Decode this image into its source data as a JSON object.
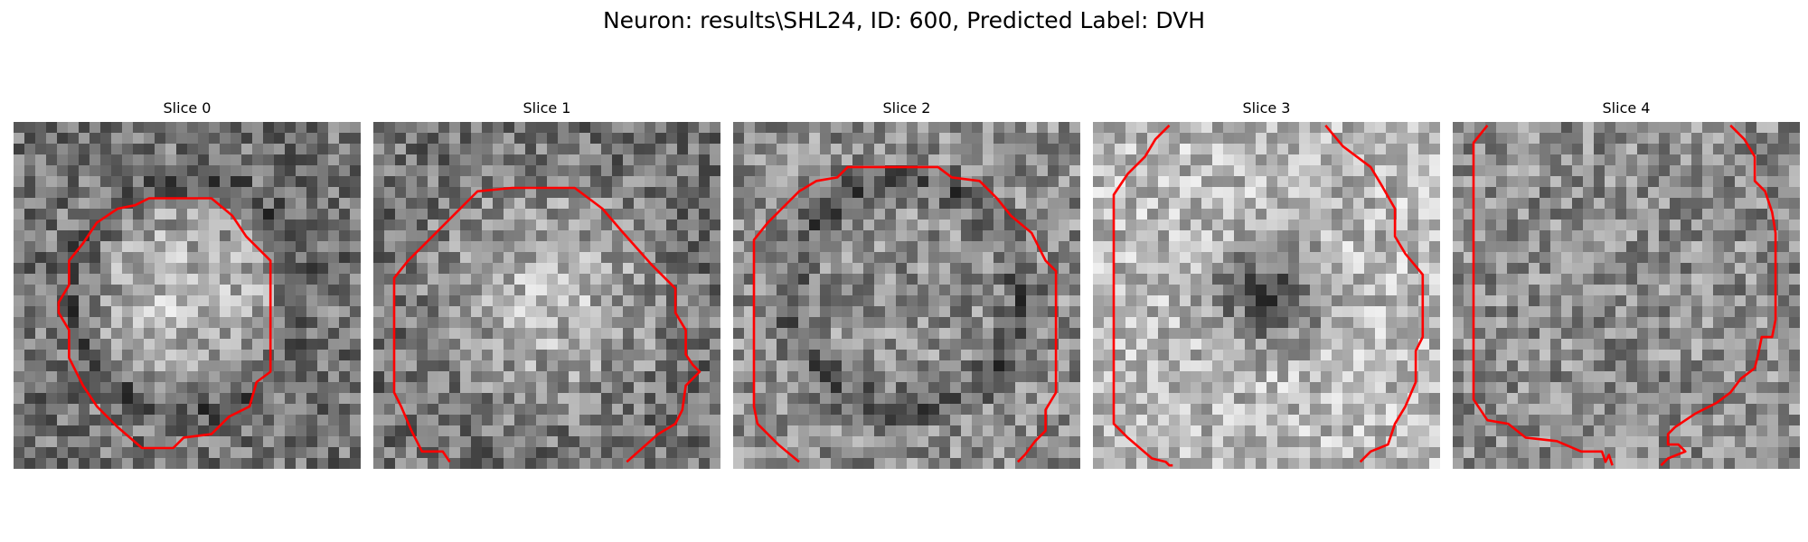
{
  "figure": {
    "title": "Neuron: results\\SHL24, ID: 600, Predicted Label: DVH"
  },
  "panels": [
    {
      "title": "Slice 0",
      "seed": 11,
      "center_brightness": "bright",
      "ring": "dark",
      "contour": [
        [
          0.39,
          0.22
        ],
        [
          0.57,
          0.22
        ],
        [
          0.63,
          0.27
        ],
        [
          0.67,
          0.33
        ],
        [
          0.74,
          0.4
        ],
        [
          0.74,
          0.55
        ],
        [
          0.74,
          0.72
        ],
        [
          0.7,
          0.75
        ],
        [
          0.68,
          0.82
        ],
        [
          0.62,
          0.85
        ],
        [
          0.57,
          0.9
        ],
        [
          0.49,
          0.91
        ],
        [
          0.46,
          0.94
        ],
        [
          0.37,
          0.94
        ],
        [
          0.3,
          0.88
        ],
        [
          0.24,
          0.82
        ],
        [
          0.2,
          0.76
        ],
        [
          0.16,
          0.68
        ],
        [
          0.16,
          0.6
        ],
        [
          0.13,
          0.55
        ],
        [
          0.13,
          0.52
        ],
        [
          0.16,
          0.47
        ],
        [
          0.16,
          0.4
        ],
        [
          0.2,
          0.35
        ],
        [
          0.24,
          0.29
        ],
        [
          0.3,
          0.25
        ],
        [
          0.35,
          0.24
        ],
        [
          0.39,
          0.22
        ]
      ],
      "closed": true
    },
    {
      "title": "Slice 1",
      "seed": 23,
      "center_brightness": "bright",
      "ring": "none",
      "contour": [
        [
          0.22,
          0.98
        ],
        [
          0.2,
          0.95
        ],
        [
          0.14,
          0.95
        ],
        [
          0.11,
          0.89
        ],
        [
          0.08,
          0.82
        ],
        [
          0.06,
          0.78
        ],
        [
          0.06,
          0.45
        ],
        [
          0.1,
          0.4
        ],
        [
          0.18,
          0.32
        ],
        [
          0.28,
          0.22
        ],
        [
          0.3,
          0.2
        ],
        [
          0.4,
          0.19
        ],
        [
          0.58,
          0.19
        ],
        [
          0.62,
          0.22
        ],
        [
          0.66,
          0.25
        ],
        [
          0.72,
          0.32
        ],
        [
          0.8,
          0.41
        ],
        [
          0.87,
          0.48
        ],
        [
          0.87,
          0.55
        ],
        [
          0.9,
          0.6
        ],
        [
          0.9,
          0.67
        ],
        [
          0.92,
          0.7
        ],
        [
          0.94,
          0.72
        ],
        [
          0.9,
          0.76
        ],
        [
          0.89,
          0.83
        ],
        [
          0.87,
          0.87
        ],
        [
          0.82,
          0.9
        ],
        [
          0.73,
          0.98
        ]
      ],
      "closed": false
    },
    {
      "title": "Slice 2",
      "seed": 37,
      "center_brightness": "mixed",
      "ring": "dark",
      "contour": [
        [
          0.19,
          0.98
        ],
        [
          0.13,
          0.93
        ],
        [
          0.07,
          0.87
        ],
        [
          0.06,
          0.82
        ],
        [
          0.06,
          0.34
        ],
        [
          0.1,
          0.29
        ],
        [
          0.14,
          0.25
        ],
        [
          0.19,
          0.2
        ],
        [
          0.24,
          0.17
        ],
        [
          0.3,
          0.16
        ],
        [
          0.33,
          0.13
        ],
        [
          0.59,
          0.13
        ],
        [
          0.63,
          0.16
        ],
        [
          0.71,
          0.17
        ],
        [
          0.76,
          0.22
        ],
        [
          0.8,
          0.27
        ],
        [
          0.86,
          0.32
        ],
        [
          0.9,
          0.4
        ],
        [
          0.93,
          0.43
        ],
        [
          0.93,
          0.78
        ],
        [
          0.9,
          0.83
        ],
        [
          0.9,
          0.89
        ],
        [
          0.87,
          0.92
        ],
        [
          0.84,
          0.96
        ],
        [
          0.82,
          0.98
        ]
      ],
      "closed": false
    },
    {
      "title": "Slice 3",
      "seed": 53,
      "center_brightness": "dark-center",
      "ring": "none",
      "contour": [
        [
          0.22,
          0.01
        ],
        [
          0.18,
          0.05
        ],
        [
          0.15,
          0.1
        ],
        [
          0.1,
          0.15
        ],
        [
          0.06,
          0.21
        ],
        [
          0.06,
          0.87
        ],
        [
          0.1,
          0.91
        ],
        [
          0.17,
          0.97
        ],
        [
          0.21,
          0.98
        ],
        [
          0.22,
          0.99
        ],
        [
          0.23,
          0.99
        ],
        [
          0.23,
          0.99
        ]
      ],
      "contour2": [
        [
          0.67,
          0.01
        ],
        [
          0.72,
          0.07
        ],
        [
          0.8,
          0.13
        ],
        [
          0.83,
          0.18
        ],
        [
          0.87,
          0.25
        ],
        [
          0.87,
          0.33
        ],
        [
          0.9,
          0.38
        ],
        [
          0.95,
          0.44
        ],
        [
          0.95,
          0.62
        ],
        [
          0.93,
          0.66
        ],
        [
          0.93,
          0.75
        ],
        [
          0.9,
          0.82
        ],
        [
          0.87,
          0.87
        ],
        [
          0.85,
          0.93
        ],
        [
          0.8,
          0.95
        ],
        [
          0.77,
          0.98
        ]
      ],
      "closed": false
    },
    {
      "title": "Slice 4",
      "seed": 71,
      "center_brightness": "mixed",
      "ring": "none",
      "contour": [
        [
          0.1,
          0.01
        ],
        [
          0.06,
          0.06
        ],
        [
          0.06,
          0.8
        ],
        [
          0.1,
          0.86
        ],
        [
          0.16,
          0.87
        ],
        [
          0.21,
          0.91
        ],
        [
          0.3,
          0.92
        ],
        [
          0.37,
          0.95
        ],
        [
          0.43,
          0.95
        ],
        [
          0.44,
          0.98
        ],
        [
          0.45,
          0.96
        ],
        [
          0.46,
          0.99
        ]
      ],
      "contour2": [
        [
          0.8,
          0.01
        ],
        [
          0.84,
          0.05
        ],
        [
          0.87,
          0.1
        ],
        [
          0.87,
          0.17
        ],
        [
          0.9,
          0.2
        ],
        [
          0.92,
          0.26
        ],
        [
          0.93,
          0.32
        ],
        [
          0.93,
          0.57
        ],
        [
          0.92,
          0.62
        ],
        [
          0.89,
          0.62
        ],
        [
          0.88,
          0.67
        ],
        [
          0.87,
          0.71
        ],
        [
          0.83,
          0.74
        ],
        [
          0.8,
          0.78
        ],
        [
          0.76,
          0.81
        ],
        [
          0.7,
          0.84
        ],
        [
          0.64,
          0.88
        ],
        [
          0.62,
          0.9
        ],
        [
          0.62,
          0.93
        ],
        [
          0.65,
          0.93
        ],
        [
          0.67,
          0.95
        ],
        [
          0.62,
          0.97
        ],
        [
          0.6,
          0.99
        ]
      ],
      "closed": false
    }
  ],
  "colors": {
    "contour": "#ff0000"
  }
}
